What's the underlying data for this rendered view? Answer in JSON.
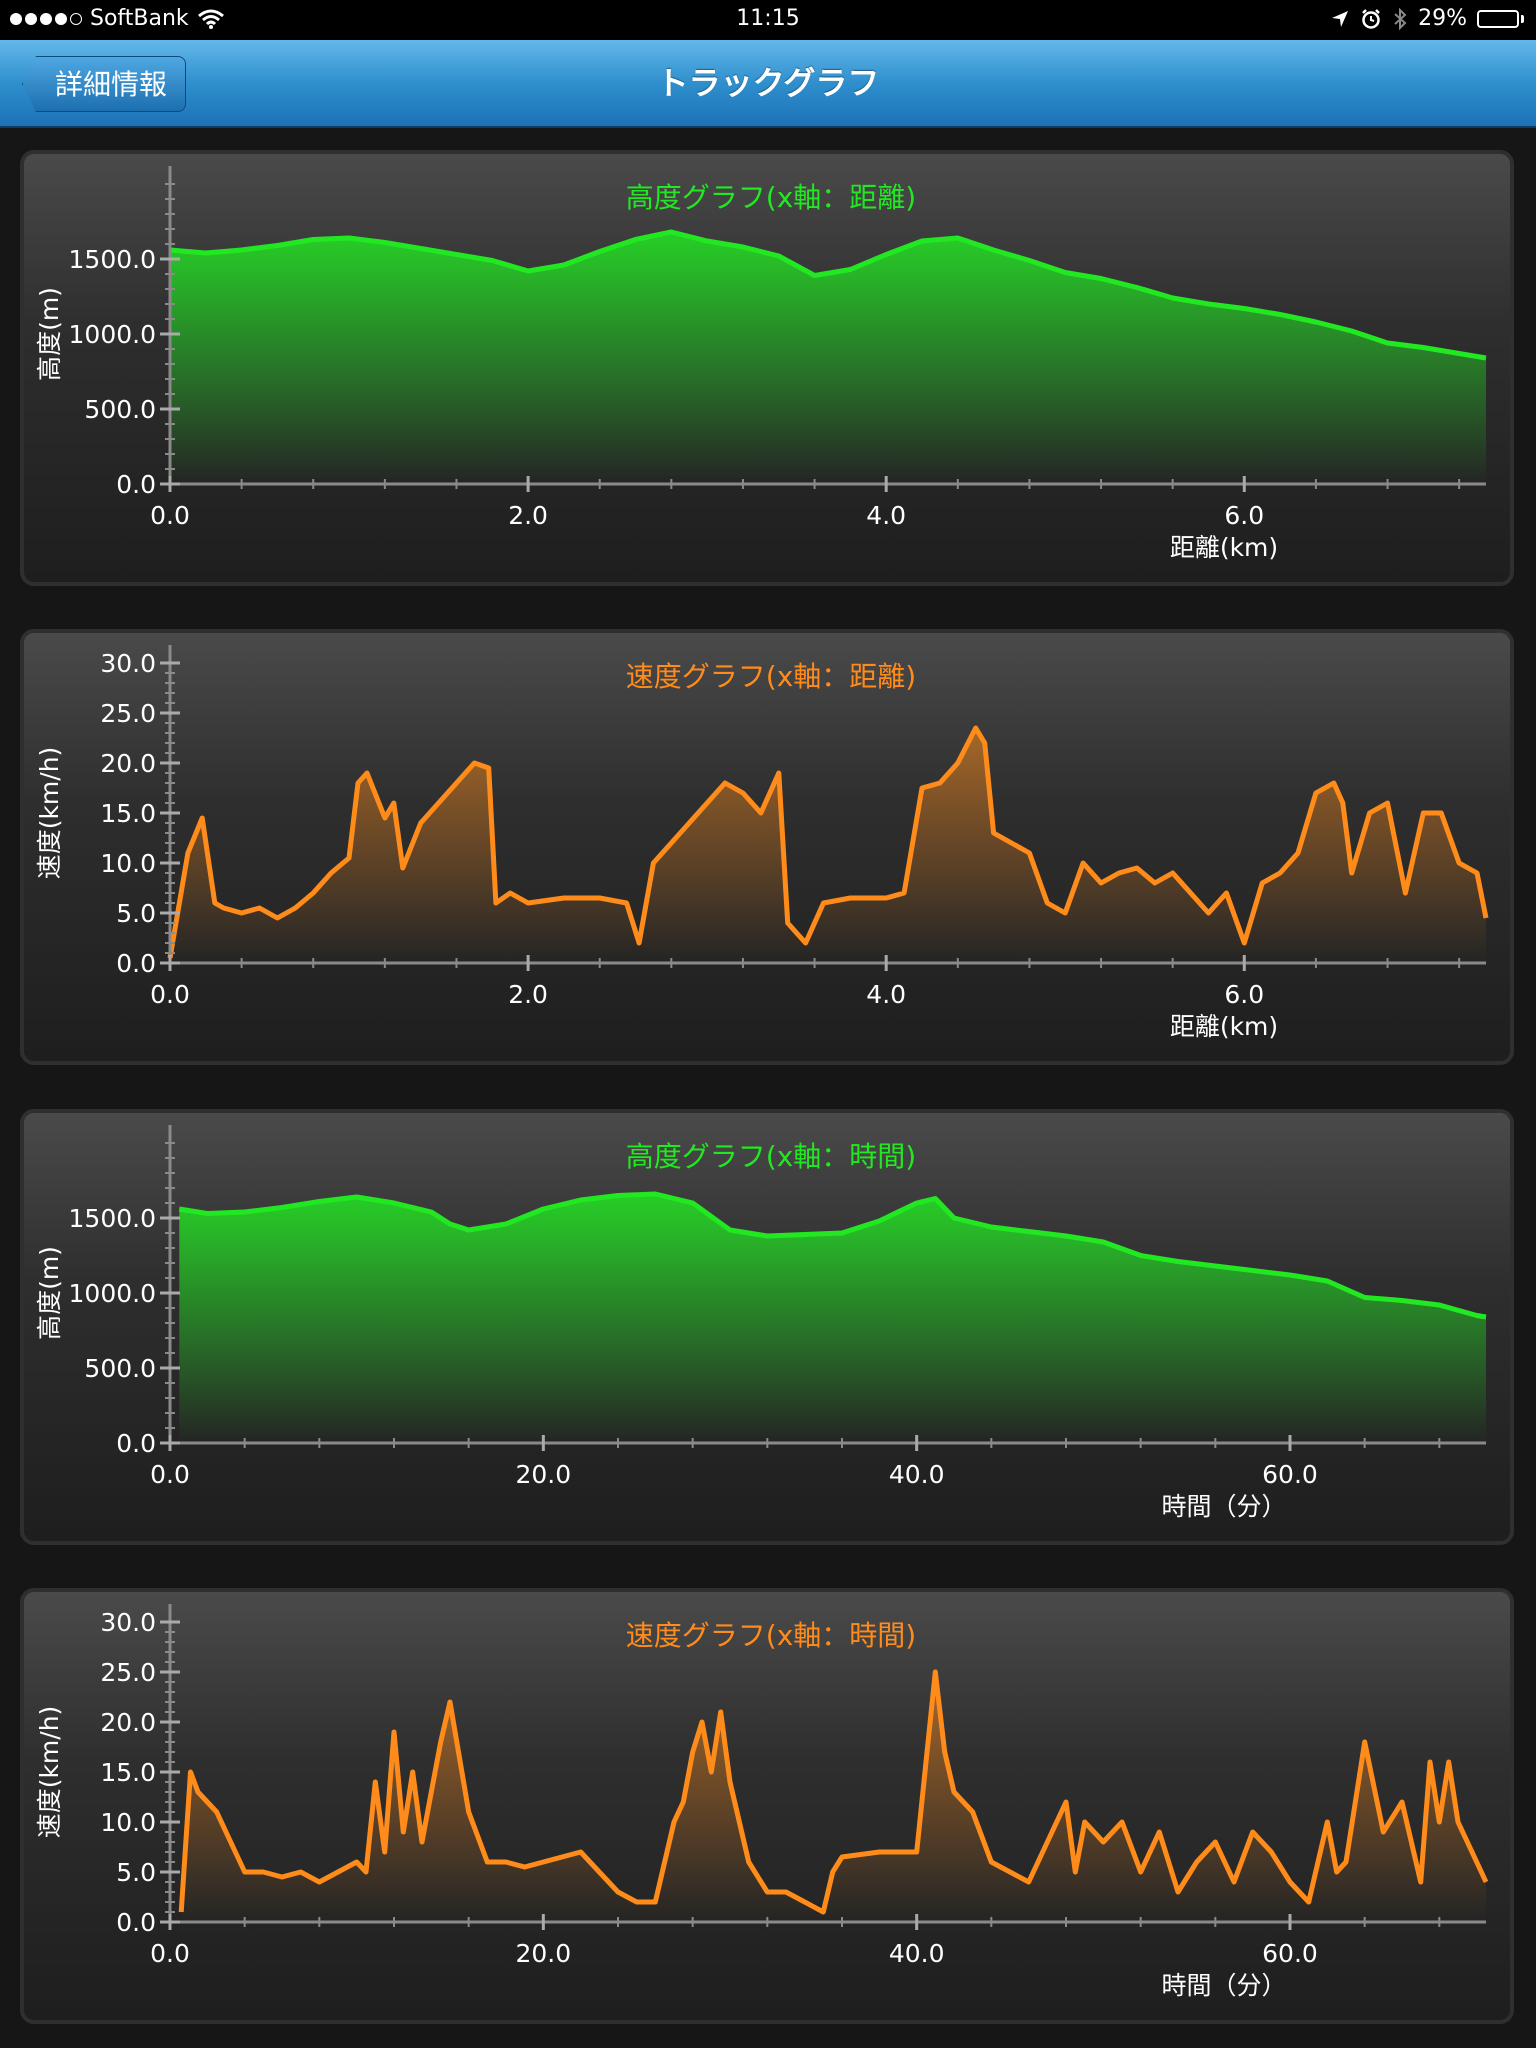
{
  "status_bar": {
    "carrier": "SoftBank",
    "time": "11:15",
    "battery": "29%",
    "battery_level": 0.29,
    "signal_bars": 4,
    "signal_max": 5
  },
  "nav": {
    "back_label": "詳細情報",
    "title": "トラックグラフ"
  },
  "colors": {
    "altitude": "#22e822",
    "speed": "#ff8c1a"
  },
  "charts": [
    {
      "type": "area",
      "title": "高度グラフ(x軸：距離)",
      "xlabel": "距離(km)",
      "ylabel": "高度(m)",
      "xlim": [
        0,
        7.35
      ],
      "ylim": [
        0,
        2000
      ],
      "xticks": [
        "0.0",
        "2.0",
        "4.0",
        "6.0"
      ],
      "yticks": [
        "0.0",
        "500.0",
        "1000.0",
        "1500.0"
      ],
      "xtick_values": [
        0,
        2,
        4,
        6
      ],
      "ytick_values": [
        0,
        500,
        1000,
        1500
      ],
      "color": "#22e822",
      "x": [
        0.0,
        0.2,
        0.4,
        0.6,
        0.8,
        1.0,
        1.2,
        1.4,
        1.6,
        1.8,
        2.0,
        2.2,
        2.4,
        2.6,
        2.8,
        3.0,
        3.2,
        3.4,
        3.6,
        3.8,
        4.0,
        4.2,
        4.4,
        4.6,
        4.8,
        5.0,
        5.2,
        5.4,
        5.6,
        5.8,
        6.0,
        6.2,
        6.4,
        6.6,
        6.8,
        7.0,
        7.2,
        7.35
      ],
      "y": [
        1560,
        1540,
        1560,
        1590,
        1630,
        1640,
        1610,
        1570,
        1530,
        1490,
        1420,
        1460,
        1550,
        1630,
        1680,
        1620,
        1580,
        1520,
        1390,
        1430,
        1530,
        1620,
        1640,
        1560,
        1490,
        1410,
        1370,
        1310,
        1240,
        1200,
        1170,
        1130,
        1080,
        1020,
        940,
        910,
        870,
        840
      ]
    },
    {
      "type": "line",
      "title": "速度グラフ(x軸：距離)",
      "xlabel": "距離(km)",
      "ylabel": "速度(km/h)",
      "xlim": [
        0,
        7.35
      ],
      "ylim": [
        0,
        30
      ],
      "xticks": [
        "0.0",
        "2.0",
        "4.0",
        "6.0"
      ],
      "yticks": [
        "0.0",
        "5.0",
        "10.0",
        "15.0",
        "20.0",
        "25.0",
        "30.0"
      ],
      "xtick_values": [
        0,
        2,
        4,
        6
      ],
      "ytick_values": [
        0,
        5,
        10,
        15,
        20,
        25,
        30
      ],
      "color": "#ff8c1a",
      "x": [
        0.0,
        0.1,
        0.18,
        0.25,
        0.3,
        0.4,
        0.5,
        0.6,
        0.7,
        0.8,
        0.9,
        1.0,
        1.05,
        1.1,
        1.2,
        1.25,
        1.3,
        1.4,
        1.5,
        1.6,
        1.7,
        1.78,
        1.82,
        1.9,
        2.0,
        2.2,
        2.4,
        2.55,
        2.62,
        2.7,
        2.8,
        2.9,
        3.0,
        3.1,
        3.2,
        3.3,
        3.4,
        3.45,
        3.55,
        3.65,
        3.8,
        4.0,
        4.1,
        4.2,
        4.3,
        4.4,
        4.5,
        4.55,
        4.6,
        4.7,
        4.8,
        4.9,
        5.0,
        5.1,
        5.2,
        5.3,
        5.4,
        5.5,
        5.6,
        5.7,
        5.8,
        5.9,
        6.0,
        6.1,
        6.2,
        6.3,
        6.4,
        6.5,
        6.55,
        6.6,
        6.7,
        6.8,
        6.9,
        7.0,
        7.1,
        7.2,
        7.3,
        7.35
      ],
      "y": [
        0.5,
        11,
        14.5,
        6,
        5.5,
        5,
        5.5,
        4.5,
        5.5,
        7,
        9,
        10.5,
        18,
        19,
        14.5,
        16,
        9.5,
        14,
        16,
        18,
        20,
        19.5,
        6,
        7,
        6,
        6.5,
        6.5,
        6,
        2,
        10,
        12,
        14,
        16,
        18,
        17,
        15,
        19,
        4,
        2,
        6,
        6.5,
        6.5,
        7,
        17.5,
        18,
        20,
        23.5,
        22,
        13,
        12,
        11,
        6,
        5,
        10,
        8,
        9,
        9.5,
        8,
        9,
        7,
        5,
        7,
        2,
        8,
        9,
        11,
        17,
        18,
        16,
        9,
        15,
        16,
        7,
        15,
        15,
        10,
        9,
        4.5
      ]
    },
    {
      "type": "area",
      "title": "高度グラフ(x軸：時間)",
      "xlabel": "時間（分）",
      "ylabel": "高度(m)",
      "xlim": [
        0,
        70.5
      ],
      "ylim": [
        0,
        2000
      ],
      "xticks": [
        "0.0",
        "20.0",
        "40.0",
        "60.0"
      ],
      "yticks": [
        "0.0",
        "500.0",
        "1000.0",
        "1500.0"
      ],
      "xtick_values": [
        0,
        20,
        40,
        60
      ],
      "ytick_values": [
        0,
        500,
        1000,
        1500
      ],
      "color": "#22e822",
      "x": [
        0.5,
        2,
        4,
        6,
        8,
        10,
        12,
        14,
        15,
        16,
        18,
        20,
        22,
        24,
        26,
        28,
        30,
        32,
        34,
        36,
        38,
        40,
        41,
        42,
        44,
        46,
        48,
        50,
        52,
        54,
        56,
        58,
        60,
        62,
        64,
        66,
        68,
        70,
        70.5
      ],
      "y": [
        1560,
        1530,
        1540,
        1570,
        1610,
        1640,
        1600,
        1540,
        1460,
        1420,
        1460,
        1560,
        1620,
        1650,
        1660,
        1600,
        1420,
        1380,
        1390,
        1400,
        1480,
        1600,
        1630,
        1500,
        1440,
        1410,
        1380,
        1340,
        1250,
        1210,
        1180,
        1150,
        1120,
        1080,
        970,
        950,
        920,
        850,
        840
      ]
    },
    {
      "type": "line",
      "title": "速度グラフ(x軸：時間)",
      "xlabel": "時間（分）",
      "ylabel": "速度(km/h)",
      "xlim": [
        0,
        70.5
      ],
      "ylim": [
        0,
        30
      ],
      "xticks": [
        "0.0",
        "20.0",
        "40.0",
        "60.0"
      ],
      "yticks": [
        "0.0",
        "5.0",
        "10.0",
        "15.0",
        "20.0",
        "25.0",
        "30.0"
      ],
      "xtick_values": [
        0,
        20,
        40,
        60
      ],
      "ytick_values": [
        0,
        5,
        10,
        15,
        20,
        25,
        30
      ],
      "color": "#ff8c1a",
      "x": [
        0.6,
        1.1,
        1.5,
        2.5,
        3,
        4,
        5,
        6,
        7,
        8,
        9,
        10,
        10.5,
        11,
        11.5,
        12,
        12.5,
        13,
        13.5,
        14,
        14.5,
        15,
        16,
        17,
        18,
        19,
        20,
        22,
        23,
        24,
        25,
        26,
        27,
        27.5,
        28,
        28.5,
        29,
        29.5,
        30,
        31,
        32,
        33,
        34,
        35,
        35.5,
        36,
        38,
        40,
        41,
        41.5,
        42,
        43,
        44,
        46,
        48,
        48.5,
        49,
        50,
        51,
        52,
        53,
        54,
        55,
        56,
        57,
        58,
        59,
        60,
        61,
        62,
        62.5,
        63,
        64,
        65,
        66,
        67,
        67.5,
        68,
        68.5,
        69,
        70,
        70.5
      ],
      "y": [
        1,
        15,
        13,
        11,
        9,
        5,
        5,
        4.5,
        5,
        4,
        5,
        6,
        5,
        14,
        7,
        19,
        9,
        15,
        8,
        13,
        18,
        22,
        11,
        6,
        6,
        5.5,
        6,
        7,
        5,
        3,
        2,
        2,
        10,
        12,
        17,
        20,
        15,
        21,
        14,
        6,
        3,
        3,
        2,
        1,
        5,
        6.5,
        7,
        7,
        25,
        17,
        13,
        11,
        6,
        4,
        12,
        5,
        10,
        8,
        10,
        5,
        9,
        3,
        6,
        8,
        4,
        9,
        7,
        4,
        2,
        10,
        5,
        6,
        18,
        9,
        12,
        4,
        16,
        10,
        16,
        10,
        6,
        4
      ]
    }
  ]
}
